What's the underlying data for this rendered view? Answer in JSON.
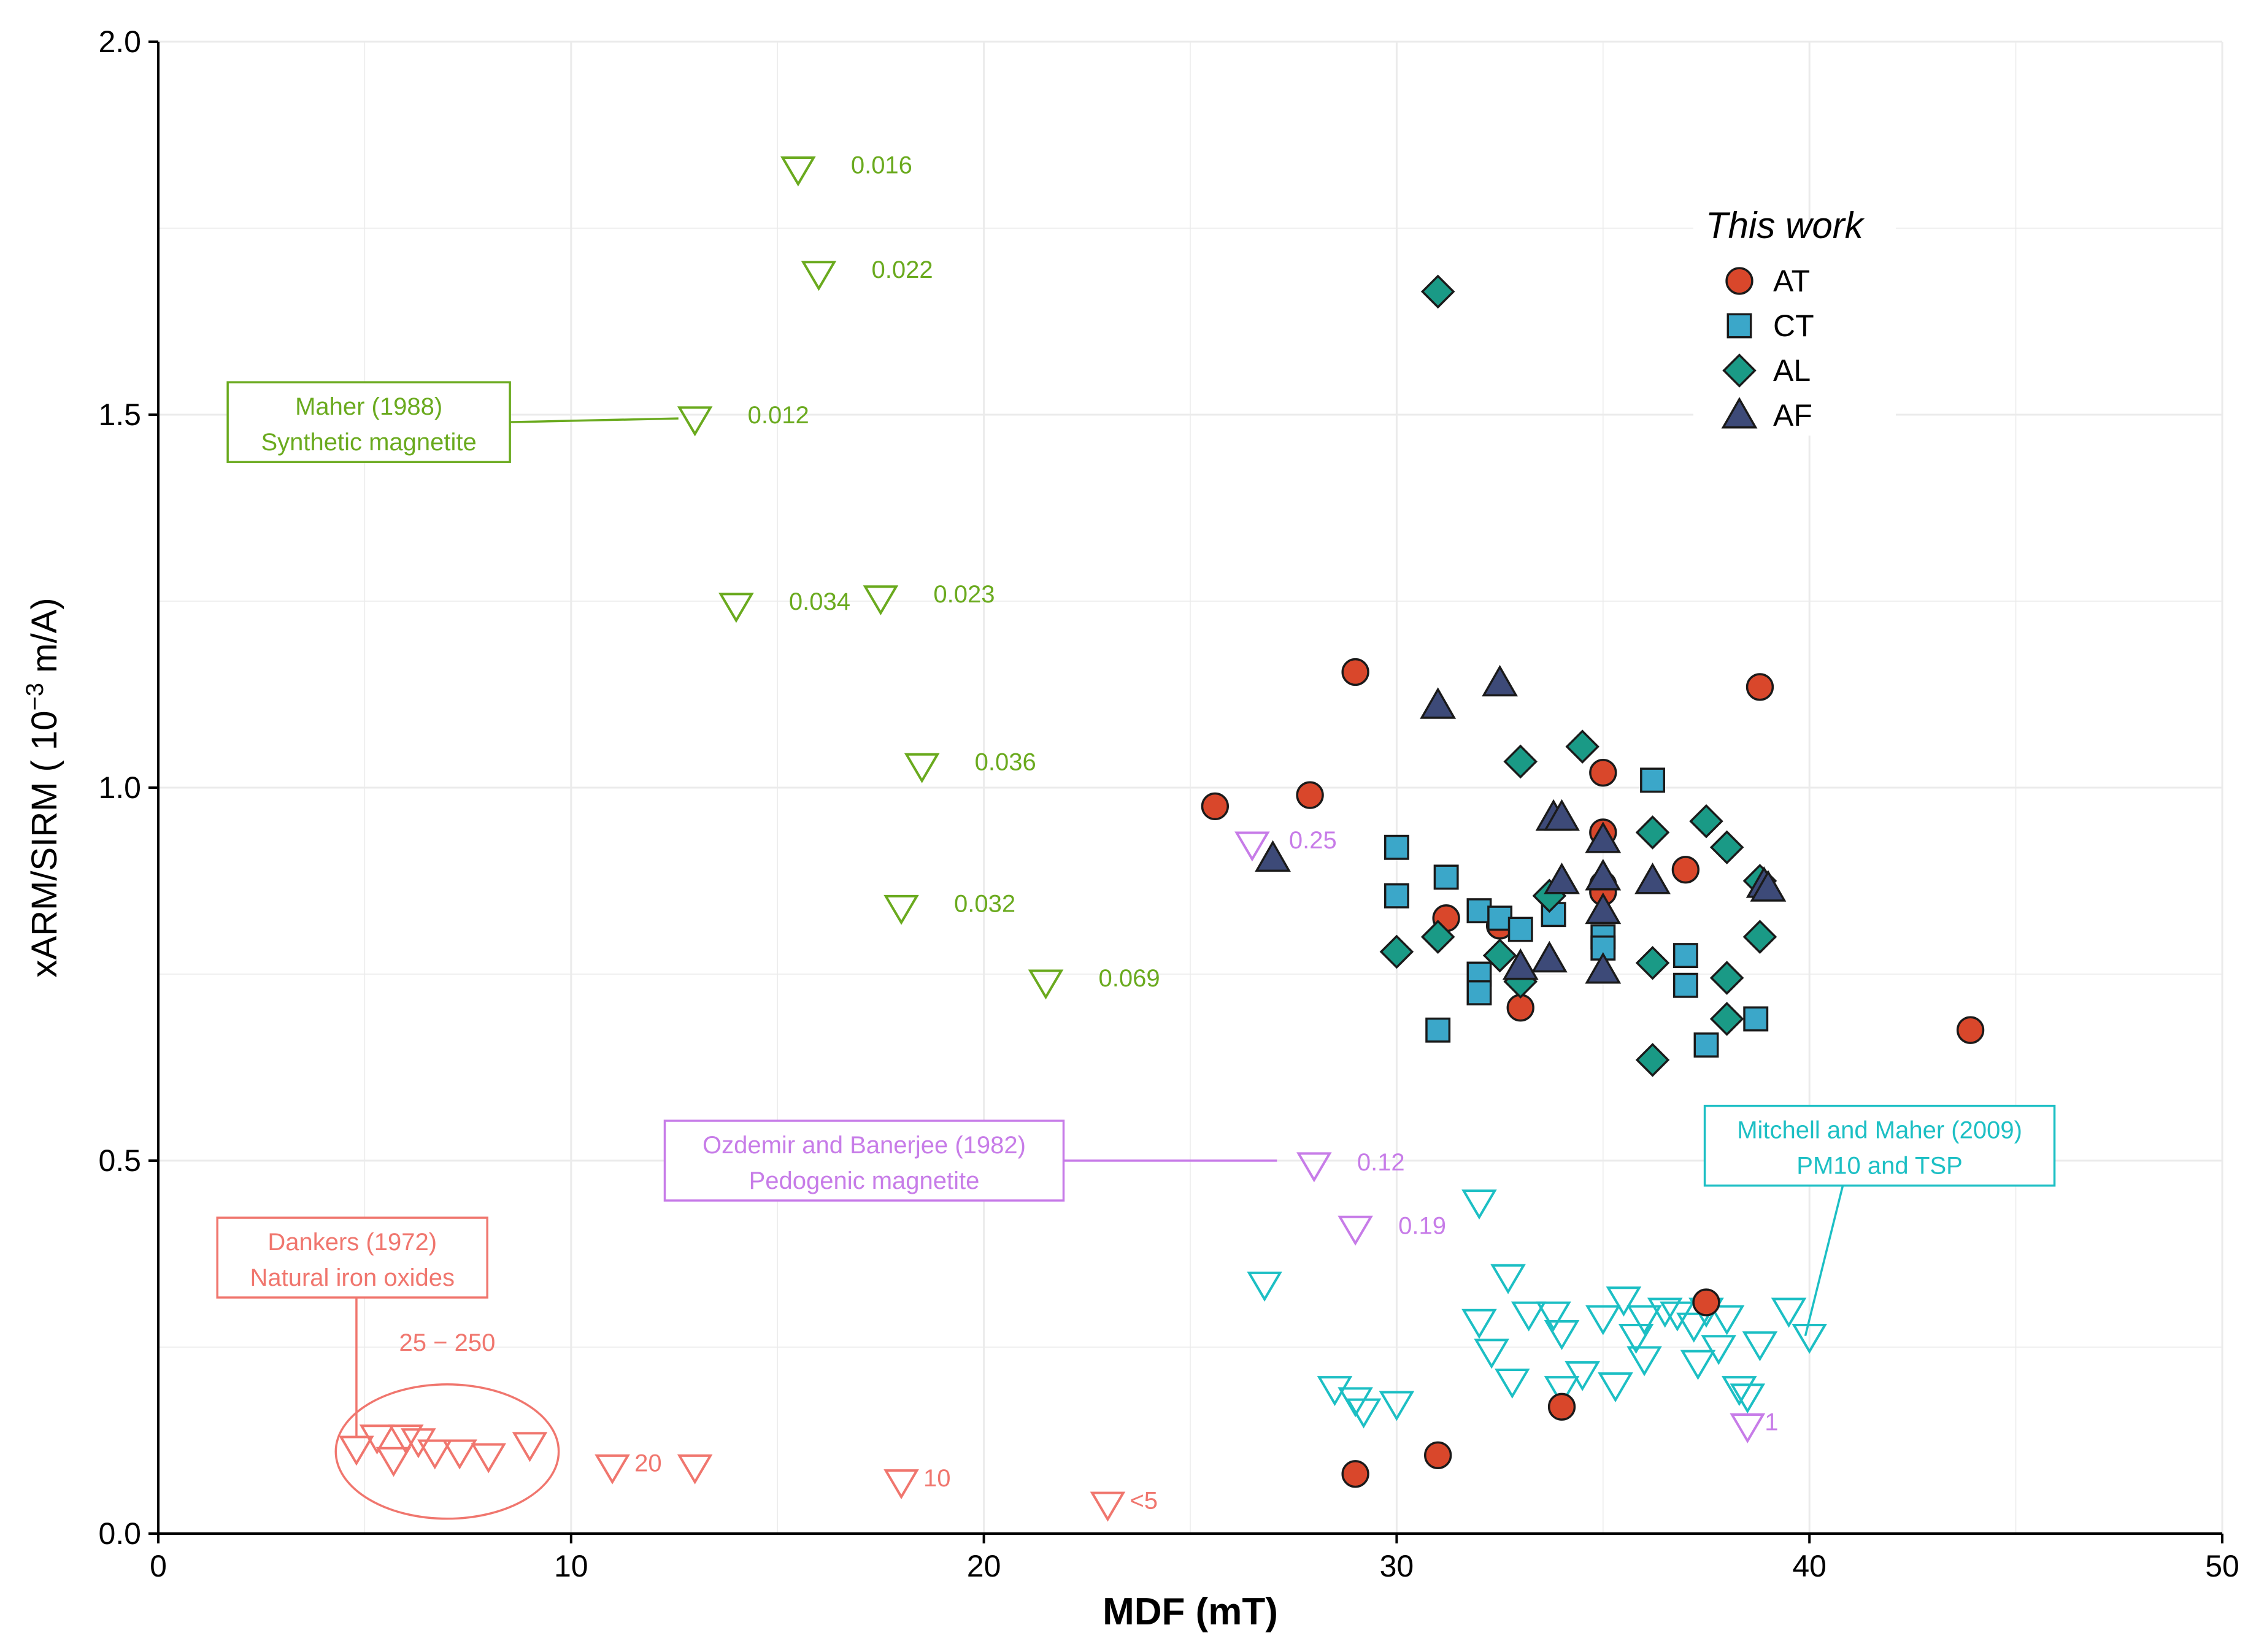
{
  "chart_data": {
    "type": "scatter",
    "xlabel": "MDF (mT)",
    "ylabel_main": "xARM/SIRM ( 10",
    "ylabel_exp": "−3",
    "ylabel_unit": " m/A)",
    "xlim": [
      0,
      50
    ],
    "ylim": [
      0,
      2
    ],
    "xticks": [
      0,
      10,
      20,
      30,
      40,
      50
    ],
    "yticks": [
      0.0,
      0.5,
      1.0,
      1.5,
      2.0
    ],
    "xtick_labels": [
      "0",
      "10",
      "20",
      "30",
      "40",
      "50"
    ],
    "ytick_labels": [
      "0.0",
      "0.5",
      "1.0",
      "1.5",
      "2.0"
    ],
    "grid": true,
    "colors": {
      "AT": "#d9472b",
      "CT": "#3ba7c9",
      "AL": "#1a9a86",
      "AF": "#3d4a78",
      "maher": "#6aaa1e",
      "ozdemir": "#c77ce8",
      "dankers": "#f0766e",
      "mitchell": "#1cbfc4"
    },
    "legend": {
      "title": "This work",
      "placement": "upper-right",
      "items": [
        {
          "label": "AT",
          "marker": "circle",
          "color": "#d9472b"
        },
        {
          "label": "CT",
          "marker": "square",
          "color": "#3ba7c9"
        },
        {
          "label": "AL",
          "marker": "diamond",
          "color": "#1a9a86"
        },
        {
          "label": "AF",
          "marker": "triangle",
          "color": "#3d4a78"
        }
      ]
    },
    "series": [
      {
        "name": "AT",
        "marker": "circle",
        "color": "#d9472b",
        "points": [
          [
            25.6,
            0.975
          ],
          [
            27.9,
            0.99
          ],
          [
            29.0,
            1.155
          ],
          [
            29.0,
            0.08
          ],
          [
            31.0,
            0.105
          ],
          [
            31.2,
            0.825
          ],
          [
            32.5,
            0.815
          ],
          [
            33.0,
            0.705
          ],
          [
            34.0,
            0.17
          ],
          [
            35.0,
            1.02
          ],
          [
            35.0,
            0.94
          ],
          [
            35.0,
            0.87
          ],
          [
            35.0,
            0.86
          ],
          [
            37.0,
            0.89
          ],
          [
            37.5,
            0.31
          ],
          [
            38.8,
            1.135
          ],
          [
            43.9,
            0.675
          ]
        ]
      },
      {
        "name": "CT",
        "marker": "square",
        "color": "#3ba7c9",
        "points": [
          [
            30.0,
            0.92
          ],
          [
            30.0,
            0.855
          ],
          [
            31.0,
            0.675
          ],
          [
            31.2,
            0.88
          ],
          [
            32.0,
            0.835
          ],
          [
            32.0,
            0.75
          ],
          [
            32.0,
            0.725
          ],
          [
            32.5,
            0.825
          ],
          [
            33.0,
            0.81
          ],
          [
            33.8,
            0.83
          ],
          [
            35.0,
            0.8
          ],
          [
            35.0,
            0.785
          ],
          [
            36.2,
            1.01
          ],
          [
            37.0,
            0.775
          ],
          [
            37.0,
            0.735
          ],
          [
            37.5,
            0.655
          ],
          [
            38.7,
            0.69
          ]
        ]
      },
      {
        "name": "AL",
        "marker": "diamond",
        "color": "#1a9a86",
        "points": [
          [
            31.0,
            1.665
          ],
          [
            30.0,
            0.78
          ],
          [
            31.0,
            0.8
          ],
          [
            32.5,
            0.775
          ],
          [
            33.0,
            1.035
          ],
          [
            33.0,
            0.74
          ],
          [
            33.7,
            0.855
          ],
          [
            34.5,
            1.055
          ],
          [
            36.2,
            0.94
          ],
          [
            36.2,
            0.765
          ],
          [
            36.2,
            0.635
          ],
          [
            37.5,
            0.955
          ],
          [
            38.0,
            0.92
          ],
          [
            38.0,
            0.745
          ],
          [
            38.0,
            0.69
          ],
          [
            38.8,
            0.875
          ],
          [
            38.8,
            0.8
          ]
        ]
      },
      {
        "name": "AF",
        "marker": "triangle",
        "color": "#3d4a78",
        "points": [
          [
            27.0,
            0.905
          ],
          [
            31.0,
            1.11
          ],
          [
            32.5,
            1.14
          ],
          [
            33.0,
            0.76
          ],
          [
            33.7,
            0.77
          ],
          [
            33.8,
            0.96
          ],
          [
            34.0,
            0.96
          ],
          [
            34.0,
            0.875
          ],
          [
            35.0,
            0.93
          ],
          [
            35.0,
            0.88
          ],
          [
            35.0,
            0.835
          ],
          [
            35.0,
            0.755
          ],
          [
            36.2,
            0.875
          ],
          [
            38.9,
            0.87
          ],
          [
            39.0,
            0.865
          ]
        ]
      },
      {
        "name": "Maher (1988) Synthetic magnetite",
        "marker": "triangle-down-open",
        "color": "#6aaa1e",
        "points": [
          [
            15.5,
            1.83
          ],
          [
            16.0,
            1.69
          ],
          [
            13.0,
            1.495
          ],
          [
            14.0,
            1.245
          ],
          [
            17.5,
            1.255
          ],
          [
            18.5,
            1.03
          ],
          [
            18.0,
            0.84
          ],
          [
            21.5,
            0.74
          ]
        ]
      },
      {
        "name": "Ozdemir and Banerjee (1982) Pedogenic magnetite",
        "marker": "triangle-down-open",
        "color": "#c77ce8",
        "points": [
          [
            26.5,
            0.925
          ],
          [
            28.0,
            0.495
          ],
          [
            29.0,
            0.41
          ],
          [
            38.5,
            0.145
          ]
        ]
      },
      {
        "name": "Dankers (1972) Natural iron oxides",
        "marker": "triangle-down-open",
        "color": "#f0766e",
        "points": [
          [
            4.8,
            0.115
          ],
          [
            5.3,
            0.13
          ],
          [
            5.7,
            0.1
          ],
          [
            6.0,
            0.13
          ],
          [
            6.3,
            0.125
          ],
          [
            6.7,
            0.11
          ],
          [
            7.3,
            0.11
          ],
          [
            8.0,
            0.105
          ],
          [
            9.0,
            0.12
          ],
          [
            11.0,
            0.09
          ],
          [
            13.0,
            0.09
          ],
          [
            18.0,
            0.07
          ],
          [
            23.0,
            0.04
          ]
        ]
      },
      {
        "name": "Mitchell and Maher (2009) PM10 and TSP",
        "marker": "triangle-down-open",
        "color": "#1cbfc4",
        "points": [
          [
            26.8,
            0.335
          ],
          [
            28.5,
            0.195
          ],
          [
            29.0,
            0.18
          ],
          [
            29.2,
            0.165
          ],
          [
            30.0,
            0.175
          ],
          [
            32.0,
            0.445
          ],
          [
            32.0,
            0.285
          ],
          [
            32.3,
            0.245
          ],
          [
            32.7,
            0.345
          ],
          [
            32.8,
            0.205
          ],
          [
            33.2,
            0.295
          ],
          [
            33.8,
            0.295
          ],
          [
            34.0,
            0.27
          ],
          [
            34.0,
            0.195
          ],
          [
            34.5,
            0.215
          ],
          [
            35.0,
            0.29
          ],
          [
            35.3,
            0.2
          ],
          [
            35.5,
            0.315
          ],
          [
            35.8,
            0.265
          ],
          [
            36.0,
            0.235
          ],
          [
            36.0,
            0.29
          ],
          [
            36.5,
            0.3
          ],
          [
            36.8,
            0.295
          ],
          [
            37.2,
            0.28
          ],
          [
            37.3,
            0.23
          ],
          [
            37.5,
            0.3
          ],
          [
            37.8,
            0.25
          ],
          [
            38.0,
            0.29
          ],
          [
            38.3,
            0.195
          ],
          [
            38.5,
            0.185
          ],
          [
            38.8,
            0.255
          ],
          [
            39.5,
            0.3
          ],
          [
            40.0,
            0.265
          ]
        ]
      }
    ],
    "annotations": {
      "point_labels": [
        {
          "text": "0.016",
          "x": 15.5,
          "y": 1.83,
          "color": "#6aaa1e"
        },
        {
          "text": "0.022",
          "x": 16.0,
          "y": 1.69,
          "color": "#6aaa1e"
        },
        {
          "text": "0.012",
          "x": 13.0,
          "y": 1.495,
          "color": "#6aaa1e"
        },
        {
          "text": "0.034",
          "x": 14.0,
          "y": 1.245,
          "color": "#6aaa1e"
        },
        {
          "text": "0.023",
          "x": 17.5,
          "y": 1.255,
          "color": "#6aaa1e"
        },
        {
          "text": "0.036",
          "x": 18.5,
          "y": 1.03,
          "color": "#6aaa1e"
        },
        {
          "text": "0.032",
          "x": 18.0,
          "y": 0.84,
          "color": "#6aaa1e"
        },
        {
          "text": "0.069",
          "x": 21.5,
          "y": 0.74,
          "color": "#6aaa1e"
        },
        {
          "text": "0.25",
          "x": 26.5,
          "y": 0.925,
          "color": "#c77ce8"
        },
        {
          "text": "0.12",
          "x": 28.0,
          "y": 0.495,
          "color": "#c77ce8"
        },
        {
          "text": "0.19",
          "x": 29.0,
          "y": 0.41,
          "color": "#c77ce8"
        },
        {
          "text": "1",
          "x": 38.5,
          "y": 0.145,
          "color": "#c77ce8"
        },
        {
          "text": "20",
          "x": 11.0,
          "y": 0.09,
          "color": "#f0766e"
        },
        {
          "text": "10",
          "x": 18.0,
          "y": 0.07,
          "color": "#f0766e"
        },
        {
          "text": "<5",
          "x": 23.0,
          "y": 0.04,
          "color": "#f0766e"
        },
        {
          "text": "25 − 250",
          "x": 7.0,
          "y": 0.245,
          "color": "#f0766e"
        }
      ],
      "boxes": [
        {
          "line1": "Maher (1988)",
          "line2": "Synthetic magnetite",
          "color": "#6aaa1e",
          "cx": 5.1,
          "cy": 1.49,
          "leader_to": [
            12.6,
            1.495
          ]
        },
        {
          "line1": "Ozdemir and Banerjee (1982)",
          "line2": "Pedogenic magnetite",
          "color": "#c77ce8",
          "cx": 17.1,
          "cy": 0.5,
          "leader_to": [
            27.1,
            0.5
          ]
        },
        {
          "line1": "Dankers (1972)",
          "line2": "Natural iron oxides",
          "color": "#f0766e",
          "cx": 4.7,
          "cy": 0.37,
          "leader_to": [
            4.8,
            0.13
          ]
        },
        {
          "line1": "Mitchell and Maher (2009)",
          "line2": "PM10 and TSP",
          "color": "#1cbfc4",
          "cx": 41.7,
          "cy": 0.52,
          "leader_to": [
            39.9,
            0.265
          ]
        }
      ],
      "ellipse": {
        "cx": 7.0,
        "cy": 0.11,
        "rx": 2.7,
        "ry": 0.09,
        "color": "#f0766e"
      }
    }
  }
}
